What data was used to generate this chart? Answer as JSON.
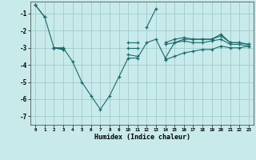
{
  "xlabel": "Humidex (Indice chaleur)",
  "background_color": "#c8eaea",
  "grid_color": "#b0d8d8",
  "line_color": "#1a6b6b",
  "x": [
    0,
    1,
    2,
    3,
    4,
    5,
    6,
    7,
    8,
    9,
    10,
    11,
    12,
    13,
    14,
    15,
    16,
    17,
    18,
    19,
    20,
    21,
    22,
    23
  ],
  "line1": [
    -0.5,
    -1.2,
    null,
    null,
    null,
    null,
    null,
    null,
    null,
    null,
    null,
    null,
    -1.8,
    -0.7,
    null,
    null,
    null,
    null,
    null,
    null,
    null,
    null,
    null,
    null
  ],
  "line2": [
    -0.5,
    -1.2,
    -3.0,
    -3.0,
    -3.8,
    -5.0,
    -5.8,
    -6.6,
    -5.8,
    -4.7,
    -3.6,
    -3.6,
    -2.7,
    -2.5,
    -3.6,
    -2.7,
    -2.5,
    -2.5,
    -2.5,
    -2.5,
    -2.2,
    -2.7,
    -2.7,
    -2.8
  ],
  "line3": [
    null,
    null,
    -3.0,
    -3.0,
    null,
    null,
    null,
    null,
    null,
    null,
    -2.7,
    -2.7,
    null,
    null,
    -2.7,
    -2.5,
    -2.4,
    -2.5,
    -2.5,
    -2.5,
    -2.3,
    -2.7,
    -2.7,
    -2.8
  ],
  "line4": [
    null,
    null,
    -3.0,
    -3.1,
    null,
    null,
    null,
    null,
    null,
    null,
    -3.0,
    -3.0,
    null,
    null,
    -2.8,
    -2.7,
    -2.6,
    -2.7,
    -2.7,
    -2.6,
    -2.5,
    -2.8,
    -2.8,
    -2.9
  ],
  "line5": [
    null,
    null,
    -3.0,
    -3.1,
    null,
    null,
    null,
    null,
    null,
    null,
    -3.4,
    -3.5,
    null,
    null,
    -3.7,
    -3.5,
    -3.3,
    -3.2,
    -3.1,
    -3.1,
    -2.9,
    -3.0,
    -3.0,
    -2.9
  ],
  "ylim": [
    -7.5,
    -0.3
  ],
  "xlim": [
    -0.5,
    23.5
  ],
  "yticks": [
    -7,
    -6,
    -5,
    -4,
    -3,
    -2,
    -1
  ],
  "xticks": [
    0,
    1,
    2,
    3,
    4,
    5,
    6,
    7,
    8,
    9,
    10,
    11,
    12,
    13,
    14,
    15,
    16,
    17,
    18,
    19,
    20,
    21,
    22,
    23
  ]
}
